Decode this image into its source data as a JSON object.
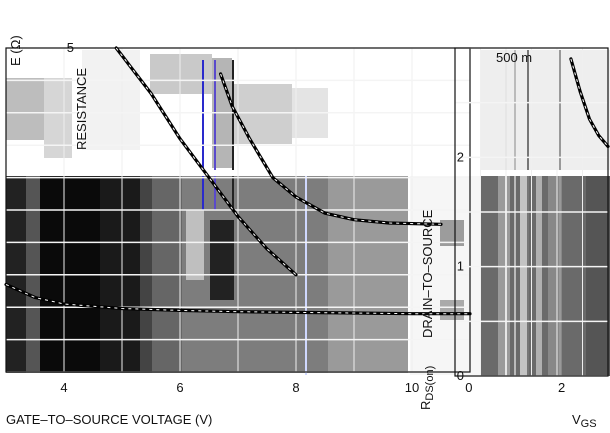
{
  "chart_data": [
    {
      "type": "line",
      "title": "",
      "xlabel": "GATE–TO–SOURCE VOLTAGE (V)",
      "ylabel": "RESISTANCE",
      "ylabel_fragment": "E (Ω)",
      "xlim": [
        3,
        11
      ],
      "ylim": [
        0,
        5
      ],
      "x_ticks": [
        "4",
        "6",
        "8",
        "10"
      ],
      "y_ticks": [
        "5"
      ],
      "grid": true,
      "series": [
        {
          "x": [
            3.0,
            3.5,
            4.0,
            5.0,
            6.0,
            7.0,
            8.0,
            9.0,
            10.0,
            11.0
          ],
          "values": [
            1.35,
            1.15,
            1.05,
            0.98,
            0.95,
            0.93,
            0.92,
            0.91,
            0.9,
            0.9
          ]
        },
        {
          "x": [
            6.7,
            6.9,
            7.2,
            7.6,
            8.0,
            8.5,
            9.0,
            9.6,
            10.5
          ],
          "values": [
            4.6,
            4.1,
            3.6,
            3.0,
            2.7,
            2.45,
            2.35,
            2.3,
            2.28
          ]
        },
        {
          "x": [
            4.9,
            5.5,
            6.0,
            6.5,
            7.0,
            7.5,
            8.0
          ],
          "values": [
            5.0,
            4.3,
            3.6,
            3.0,
            2.4,
            1.9,
            1.5
          ]
        }
      ]
    },
    {
      "type": "line",
      "title": "",
      "xlabel": "V",
      "xlabel_sub": "GS",
      "ylabel": "DRAIN–TO–SOURCE",
      "ylabel_symbol": "R",
      "ylabel_sub": "DS(on)",
      "legend_fragment": "500 m",
      "xlim": [
        -0.3,
        3.0
      ],
      "ylim": [
        0,
        3
      ],
      "x_ticks": [
        "0",
        "2"
      ],
      "y_ticks": [
        "0",
        "1",
        "2"
      ],
      "grid": true,
      "series": [
        {
          "x": [
            2.2,
            2.4,
            2.6,
            2.8,
            3.0
          ],
          "values": [
            2.9,
            2.6,
            2.35,
            2.2,
            2.1
          ]
        }
      ]
    }
  ]
}
